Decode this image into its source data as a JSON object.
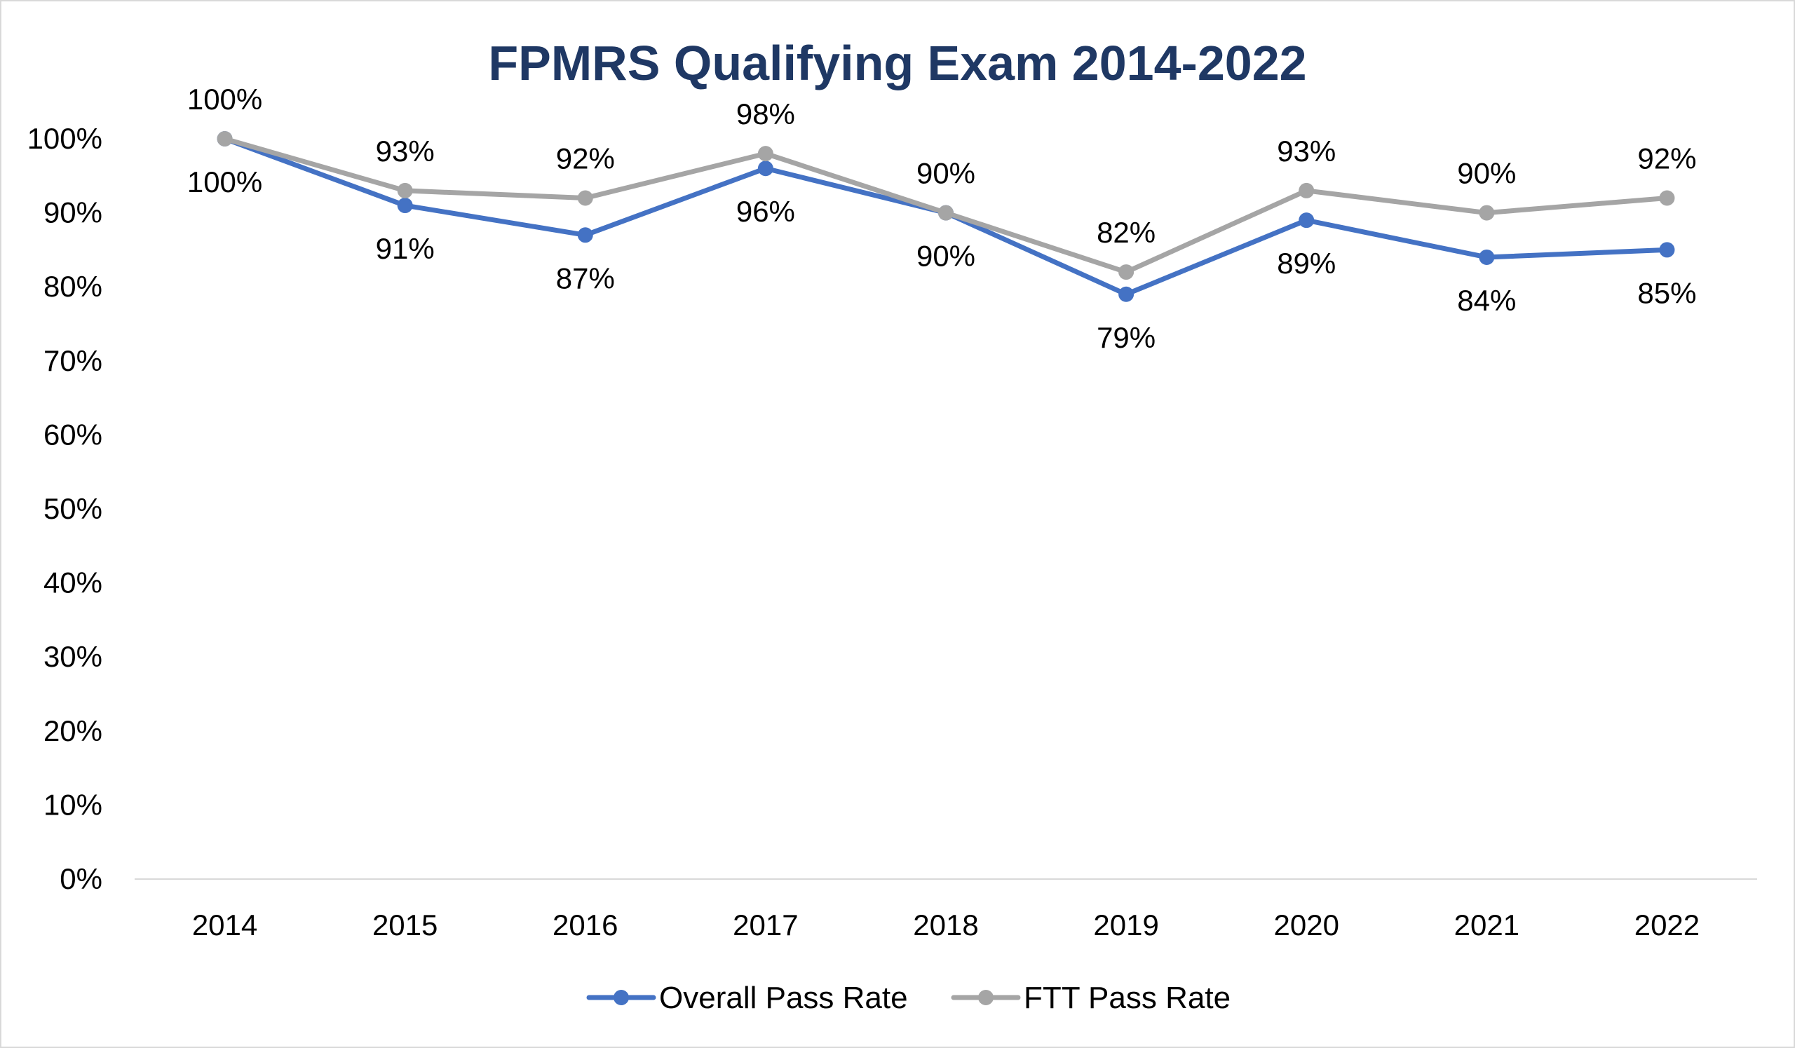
{
  "chart_data": {
    "type": "line",
    "title": "FPMRS Qualifying Exam 2014-2022",
    "xlabel": "",
    "ylabel": "",
    "categories": [
      "2014",
      "2015",
      "2016",
      "2017",
      "2018",
      "2019",
      "2020",
      "2021",
      "2022"
    ],
    "y_ticks": [
      "0%",
      "10%",
      "20%",
      "30%",
      "40%",
      "50%",
      "60%",
      "70%",
      "80%",
      "90%",
      "100%"
    ],
    "ylim": [
      0,
      100
    ],
    "grid": false,
    "legend": "bottom",
    "series": [
      {
        "name": "Overall Pass Rate",
        "color": "#4472c4",
        "values": [
          100,
          91,
          87,
          96,
          90,
          79,
          89,
          84,
          85
        ],
        "labels": [
          "100%",
          "91%",
          "87%",
          "96%",
          "90%",
          "79%",
          "89%",
          "84%",
          "85%"
        ],
        "label_position": "below"
      },
      {
        "name": "FTT Pass Rate",
        "color": "#a5a5a5",
        "values": [
          100,
          93,
          92,
          98,
          90,
          82,
          93,
          90,
          92
        ],
        "labels": [
          "100%",
          "93%",
          "92%",
          "98%",
          "90%",
          "82%",
          "93%",
          "90%",
          "92%"
        ],
        "label_position": "above"
      }
    ]
  }
}
